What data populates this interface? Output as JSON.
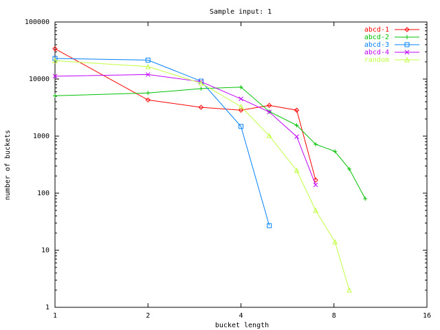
{
  "chart_data": {
    "type": "line",
    "title": "Sample input: 1",
    "xlabel": "bucket length",
    "ylabel": "number of buckets",
    "x_scale": "log2",
    "y_scale": "log10",
    "xlim": [
      1,
      16
    ],
    "ylim": [
      1,
      100000
    ],
    "x_ticks": [
      1,
      2,
      4,
      8,
      16
    ],
    "x_tick_labels": [
      "1",
      "2",
      "4",
      "8",
      "16"
    ],
    "y_ticks": [
      1,
      10,
      100,
      1000,
      10000,
      100000
    ],
    "y_tick_labels": [
      "1",
      "10",
      "100",
      "1000",
      "10000",
      "100000"
    ],
    "grid": false,
    "legend_position": "top-right",
    "series": [
      {
        "name": "abcd-1",
        "color": "#ff0000",
        "marker": "diamond",
        "points": [
          [
            1,
            34000
          ],
          [
            2,
            4300
          ],
          [
            2.97,
            3200
          ],
          [
            4,
            2850
          ],
          [
            4.94,
            3450
          ],
          [
            6.06,
            2850
          ],
          [
            6.98,
            170
          ]
        ]
      },
      {
        "name": "abcd-2",
        "color": "#00c000",
        "marker": "plus",
        "points": [
          [
            1,
            5100
          ],
          [
            2,
            5700
          ],
          [
            2.97,
            6800
          ],
          [
            4,
            7200
          ],
          [
            4.94,
            2700
          ],
          [
            6.06,
            1550
          ],
          [
            6.98,
            720
          ],
          [
            8.06,
            540
          ],
          [
            8.97,
            265
          ],
          [
            10.1,
            80
          ]
        ]
      },
      {
        "name": "abcd-3",
        "color": "#0080ff",
        "marker": "square",
        "points": [
          [
            1,
            23000
          ],
          [
            2,
            21500
          ],
          [
            2.97,
            9200
          ],
          [
            4,
            1480
          ],
          [
            4.94,
            27
          ]
        ]
      },
      {
        "name": "abcd-4",
        "color": "#c000ff",
        "marker": "x",
        "points": [
          [
            1,
            11200
          ],
          [
            2,
            12000
          ],
          [
            2.97,
            9000
          ],
          [
            4,
            4500
          ],
          [
            4.94,
            2650
          ],
          [
            6.06,
            980
          ],
          [
            6.98,
            140
          ]
        ]
      },
      {
        "name": "random",
        "color": "#c0ff40",
        "marker": "triangle",
        "points": [
          [
            1,
            21000
          ],
          [
            2,
            16500
          ],
          [
            2.97,
            8500
          ],
          [
            4,
            3300
          ],
          [
            4.94,
            1020
          ],
          [
            6.06,
            250
          ],
          [
            6.98,
            50
          ],
          [
            8.06,
            14
          ],
          [
            8.97,
            2
          ]
        ]
      }
    ]
  }
}
